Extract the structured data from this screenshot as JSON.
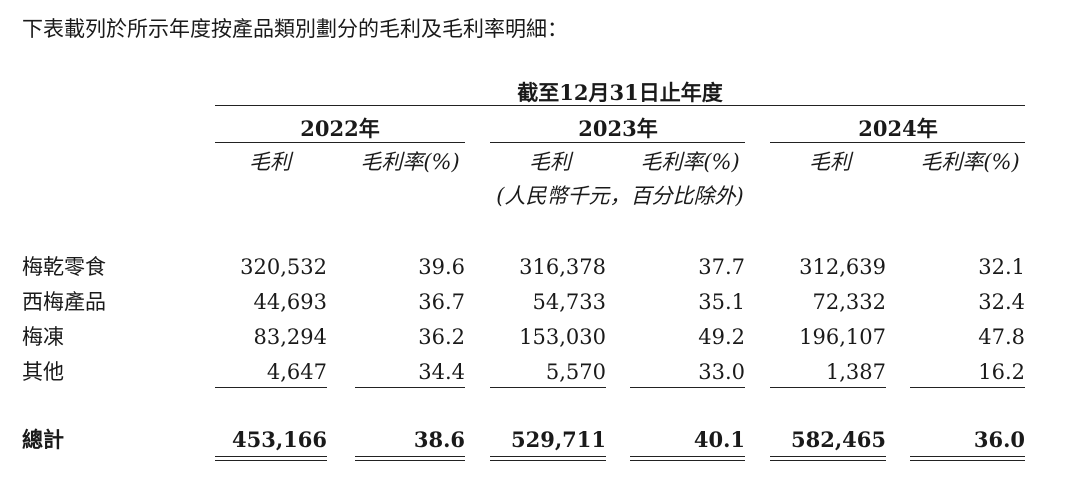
{
  "intro": "下表載列於所示年度按產品類別劃分的毛利及毛利率明細：",
  "table": {
    "period_header": "截至12月31日止年度",
    "years": [
      "2022年",
      "2023年",
      "2024年"
    ],
    "sub_headers": [
      "毛利",
      "毛利率(%)",
      "毛利",
      "毛利率(%)",
      "毛利",
      "毛利率(%)"
    ],
    "unit": "(人民幣千元，百分比除外)",
    "rows": [
      [
        "梅乾零食",
        "320,532",
        "39.6",
        "316,378",
        "37.7",
        "312,639",
        "32.1"
      ],
      [
        "西梅產品",
        "44,693",
        "36.7",
        "54,733",
        "35.1",
        "72,332",
        "32.4"
      ],
      [
        "梅凍",
        "83,294",
        "36.2",
        "153,030",
        "49.2",
        "196,107",
        "47.8"
      ],
      [
        "其他",
        "4,647",
        "34.4",
        "5,570",
        "33.0",
        "1,387",
        "16.2"
      ]
    ],
    "total": [
      "總計",
      "453,166",
      "38.6",
      "529,711",
      "40.1",
      "582,465",
      "36.0"
    ]
  }
}
